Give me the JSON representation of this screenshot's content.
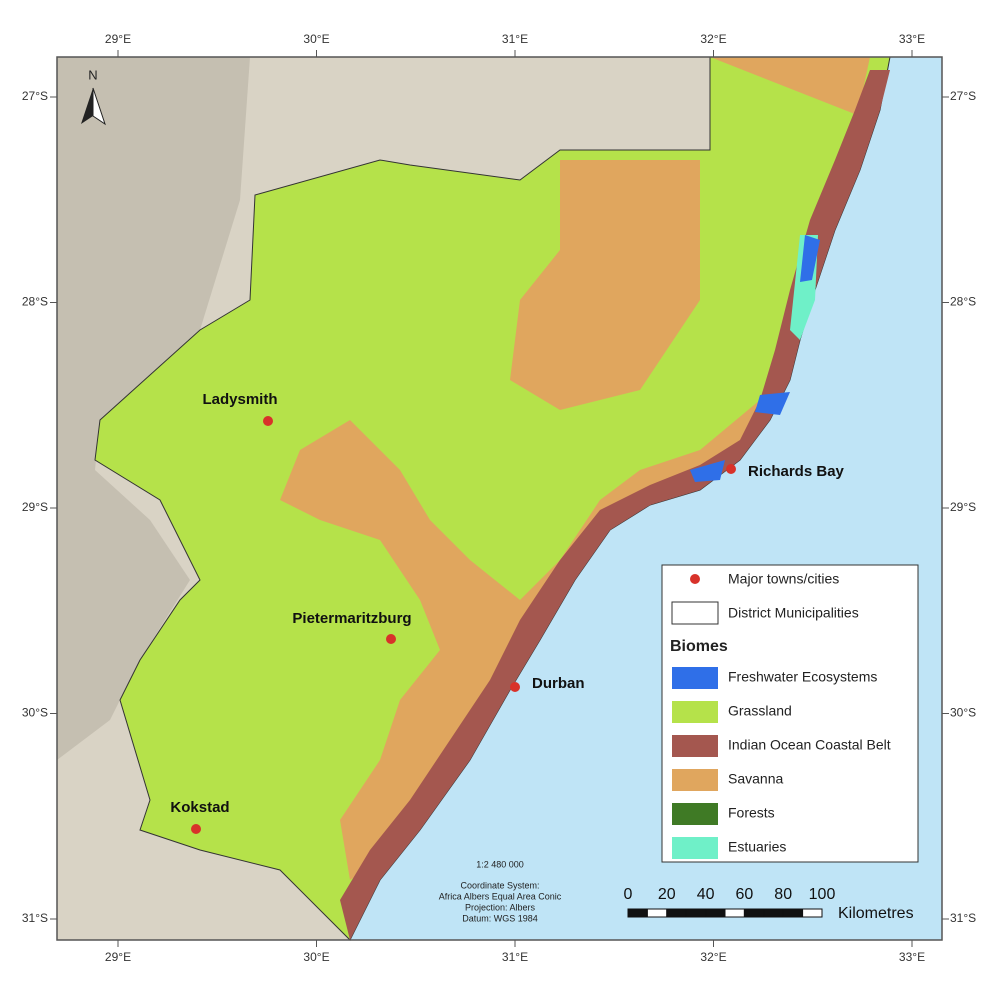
{
  "map": {
    "longitudes": [
      "29°E",
      "30°E",
      "31°E",
      "32°E",
      "33°E"
    ],
    "latitudes": [
      "27°S",
      "28°S",
      "29°S",
      "30°S",
      "31°S"
    ],
    "north_label": "N",
    "cities": [
      "Ladysmith",
      "Richards Bay",
      "Pietermaritzburg",
      "Durban",
      "Kokstad"
    ],
    "legend": {
      "towns": "Major towns/cities",
      "districts": "District Municipalities",
      "heading": "Biomes",
      "biomes": [
        {
          "name": "Freshwater Ecosystems",
          "color": "#2f6fe8"
        },
        {
          "name": "Grassland",
          "color": "#b5e24a"
        },
        {
          "name": "Indian Ocean Coastal Belt",
          "color": "#a4574f"
        },
        {
          "name": "Savanna",
          "color": "#e0a65e"
        },
        {
          "name": "Forests",
          "color": "#3f7a25"
        },
        {
          "name": "Estuaries",
          "color": "#6ff0c8"
        }
      ]
    },
    "scale_text": "1:2 480 000",
    "notes": [
      "Coordinate System:",
      "Africa Albers Equal Area Conic",
      "Projection: Albers",
      "Datum: WGS 1984"
    ],
    "scalebar": {
      "ticks": [
        0,
        20,
        40,
        60,
        80,
        100
      ],
      "unit": "Kilometres"
    }
  }
}
